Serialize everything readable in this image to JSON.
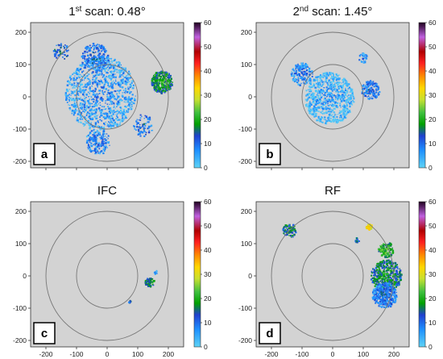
{
  "chart_data": [
    {
      "type": "heatmap",
      "title": "1st scan: 0.48°",
      "title_main": "1",
      "title_sup": "st",
      "title_rest": " scan: 0.48°",
      "panel_label": "a",
      "xlim": [
        -250,
        250
      ],
      "ylim": [
        -220,
        230
      ],
      "xticks": [
        -200,
        -100,
        0,
        100,
        200
      ],
      "yticks": [
        -200,
        -100,
        0,
        100,
        200
      ],
      "range_rings_km": [
        100,
        200
      ],
      "colorbar": {
        "min": 0,
        "max": 60,
        "ticks": [
          0,
          10,
          20,
          30,
          40,
          50,
          60
        ]
      },
      "echo_regions": [
        {
          "cx": -20,
          "cy": 10,
          "r": 115,
          "value": 8,
          "density": "high"
        },
        {
          "cx": 180,
          "cy": 45,
          "r": 35,
          "value": 20,
          "density": "high"
        },
        {
          "cx": -40,
          "cy": 120,
          "r": 45,
          "value": 12,
          "density": "medium"
        },
        {
          "cx": -150,
          "cy": 140,
          "r": 25,
          "value": 15,
          "density": "low"
        },
        {
          "cx": -30,
          "cy": -140,
          "r": 40,
          "value": 10,
          "density": "medium"
        },
        {
          "cx": 120,
          "cy": -90,
          "r": 35,
          "value": 12,
          "density": "low"
        }
      ]
    },
    {
      "type": "heatmap",
      "title": "2nd scan: 1.45°",
      "title_main": "2",
      "title_sup": "nd",
      "title_rest": " scan: 1.45°",
      "panel_label": "b",
      "xlim": [
        -250,
        250
      ],
      "ylim": [
        -220,
        230
      ],
      "xticks": [
        -200,
        -100,
        0,
        100,
        200
      ],
      "yticks": [
        -200,
        -100,
        0,
        100,
        200
      ],
      "range_rings_km": [
        100,
        200
      ],
      "colorbar": {
        "min": 0,
        "max": 60,
        "ticks": [
          0,
          10,
          20,
          30,
          40,
          50,
          60
        ]
      },
      "echo_regions": [
        {
          "cx": -10,
          "cy": -5,
          "r": 80,
          "value": 6,
          "density": "high"
        },
        {
          "cx": -100,
          "cy": 70,
          "r": 35,
          "value": 10,
          "density": "medium"
        },
        {
          "cx": 125,
          "cy": 20,
          "r": 30,
          "value": 12,
          "density": "medium"
        },
        {
          "cx": 100,
          "cy": 120,
          "r": 15,
          "value": 10,
          "density": "low"
        }
      ]
    },
    {
      "type": "heatmap",
      "title": "IFC",
      "title_main": "IFC",
      "title_sup": "",
      "title_rest": "",
      "panel_label": "c",
      "xlim": [
        -250,
        250
      ],
      "ylim": [
        -220,
        230
      ],
      "xticks": [
        -200,
        -100,
        0,
        100,
        200
      ],
      "yticks": [
        -200,
        -100,
        0,
        100,
        200
      ],
      "range_rings_km": [
        100,
        200
      ],
      "colorbar": {
        "min": 0,
        "max": 60,
        "ticks": [
          0,
          10,
          20,
          30,
          40,
          50,
          60
        ]
      },
      "echo_regions": [
        {
          "cx": 140,
          "cy": -20,
          "r": 15,
          "value": 18,
          "density": "medium"
        },
        {
          "cx": 160,
          "cy": 10,
          "r": 6,
          "value": 10,
          "density": "low"
        },
        {
          "cx": 75,
          "cy": -80,
          "r": 4,
          "value": 15,
          "density": "low"
        }
      ]
    },
    {
      "type": "heatmap",
      "title": "RF",
      "title_main": "RF",
      "title_sup": "",
      "title_rest": "",
      "panel_label": "d",
      "xlim": [
        -250,
        250
      ],
      "ylim": [
        -220,
        230
      ],
      "xticks": [
        -200,
        -100,
        0,
        100,
        200
      ],
      "yticks": [
        -200,
        -100,
        0,
        100,
        200
      ],
      "range_rings_km": [
        100,
        200
      ],
      "colorbar": {
        "min": 0,
        "max": 60,
        "ticks": [
          0,
          10,
          20,
          30,
          40,
          50,
          60
        ]
      },
      "echo_regions": [
        {
          "cx": 175,
          "cy": 0,
          "r": 50,
          "value": 18,
          "density": "high"
        },
        {
          "cx": 170,
          "cy": -60,
          "r": 40,
          "value": 12,
          "density": "high"
        },
        {
          "cx": 175,
          "cy": 80,
          "r": 25,
          "value": 22,
          "density": "medium"
        },
        {
          "cx": -140,
          "cy": 140,
          "r": 22,
          "value": 18,
          "density": "medium"
        },
        {
          "cx": 120,
          "cy": 150,
          "r": 10,
          "value": 35,
          "density": "medium"
        },
        {
          "cx": 80,
          "cy": 110,
          "r": 8,
          "value": 15,
          "density": "low"
        }
      ]
    }
  ]
}
